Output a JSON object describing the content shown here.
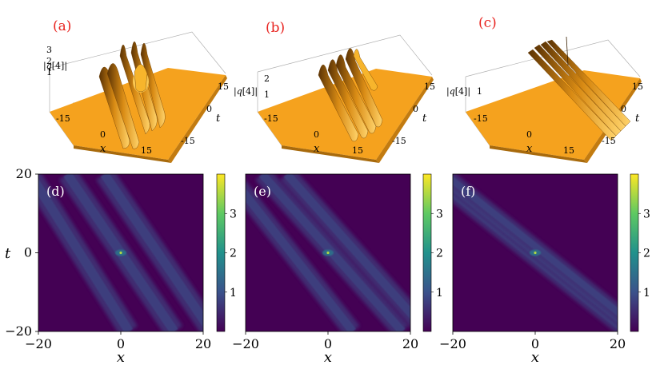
{
  "top_panels": [
    {
      "label": "(a)",
      "zlabel": "|q[4]|",
      "zticks": [
        "1",
        "2",
        "3"
      ],
      "xticks": [
        "-15",
        "0",
        "15"
      ],
      "tticks": [
        "15",
        "0",
        "-15"
      ],
      "xlabel": "x",
      "tlabel": "t"
    },
    {
      "label": "(b)",
      "zlabel": "|q[4]|",
      "zticks": [
        "1",
        "2"
      ],
      "xticks": [
        "-15",
        "0",
        "15"
      ],
      "tticks": [
        "15",
        "0",
        "-15"
      ],
      "xlabel": "x",
      "tlabel": "t"
    },
    {
      "label": "(c)",
      "zlabel": "|q[4]|",
      "zticks": [
        "1"
      ],
      "xticks": [
        "-15",
        "0",
        "15"
      ],
      "tticks": [
        "15",
        "0",
        "-15"
      ],
      "xlabel": "x",
      "tlabel": "t"
    }
  ],
  "bottom_panels": [
    {
      "label": "(d)"
    },
    {
      "label": "(e)"
    },
    {
      "label": "(f)"
    }
  ],
  "chart_data": [
    {
      "type": "heatmap",
      "panel": "(d)",
      "xlabel": "x",
      "ylabel": "t",
      "xlim": [
        -20,
        20
      ],
      "ylim": [
        -20,
        20
      ],
      "xticks": [
        "-20",
        "0",
        "20"
      ],
      "yticks": [
        "20",
        "0",
        "-20"
      ],
      "colorbar": {
        "min": 0,
        "max": 4,
        "ticks": [
          "1",
          "2",
          "3"
        ],
        "colormap": "viridis"
      },
      "stripes": [
        {
          "x_at_t20": -22,
          "x_at_tm20": 2,
          "width": 2.2,
          "level": 0.8
        },
        {
          "x_at_t20": -13,
          "x_at_tm20": 13,
          "width": 2.2,
          "level": 0.8
        },
        {
          "x_at_t20": -4,
          "x_at_tm20": 22,
          "width": 2.2,
          "level": 0.8
        }
      ],
      "peak": {
        "x": 0,
        "t": 0,
        "value": 3.5
      }
    },
    {
      "type": "heatmap",
      "panel": "(e)",
      "xlabel": "x",
      "ylabel": "",
      "xlim": [
        -20,
        20
      ],
      "ylim": [
        -20,
        20
      ],
      "xticks": [
        "-20",
        "0",
        "20"
      ],
      "yticks": [],
      "colorbar": {
        "min": 0,
        "max": 4,
        "ticks": [
          "1",
          "2",
          "3"
        ],
        "colormap": "viridis"
      },
      "stripes": [
        {
          "x_at_t20": -24,
          "x_at_tm20": 6,
          "width": 2.0,
          "level": 0.8
        },
        {
          "x_at_t20": -16,
          "x_at_tm20": 18,
          "width": 2.0,
          "level": 0.8
        },
        {
          "x_at_t20": -10,
          "x_at_tm20": 24,
          "width": 2.0,
          "level": 0.8
        }
      ],
      "peak": {
        "x": 0,
        "t": 0,
        "value": 3.5
      }
    },
    {
      "type": "heatmap",
      "panel": "(f)",
      "xlabel": "x",
      "ylabel": "",
      "xlim": [
        -20,
        20
      ],
      "ylim": [
        -20,
        20
      ],
      "xticks": [
        "-20",
        "0",
        "20"
      ],
      "yticks": [],
      "colorbar": {
        "min": 0,
        "max": 4,
        "ticks": [
          "1",
          "2",
          "3"
        ],
        "colormap": "viridis"
      },
      "stripes": [
        {
          "x_at_t20": -26,
          "x_at_tm20": 22,
          "width": 1.6,
          "level": 0.8
        },
        {
          "x_at_t20": -24,
          "x_at_tm20": 24,
          "width": 1.6,
          "level": 0.8
        },
        {
          "x_at_t20": -22,
          "x_at_tm20": 26,
          "width": 1.6,
          "level": 0.8
        }
      ],
      "peak": {
        "x": 0,
        "t": 0,
        "value": 3.5
      }
    }
  ],
  "colors": {
    "surface": "#f5a21e",
    "surface_dark": "#7a4a08",
    "label_red": "#e8231f",
    "viridis_low": "#440154",
    "viridis_high": "#fde725"
  }
}
